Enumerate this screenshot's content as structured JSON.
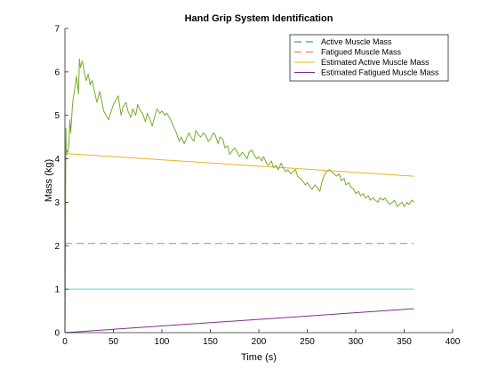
{
  "chart_data": {
    "type": "line",
    "title": "Hand Grip System Identification",
    "xlabel": "Time (s)",
    "ylabel": "Mass (kg)",
    "xlim": [
      0,
      400
    ],
    "ylim": [
      0,
      7
    ],
    "xticks": [
      0,
      50,
      100,
      150,
      200,
      250,
      300,
      350,
      400
    ],
    "yticks": [
      0,
      1,
      2,
      3,
      4,
      5,
      6,
      7
    ],
    "grid": false,
    "legend_position": "top-right",
    "series": [
      {
        "name": "Active Muscle Mass",
        "color": "#1f77b4",
        "line_style": "dashed",
        "x": [
          0,
          0.2,
          0.5
        ],
        "y": [
          0,
          1,
          1
        ]
      },
      {
        "name": "Fatigued Muscle Mass",
        "color": "#d9794f",
        "line_style": "dashed",
        "x": [
          0,
          360
        ],
        "y": [
          2.05,
          2.05
        ]
      },
      {
        "name": "Estimated Active Muscle Mass",
        "color": "#edb120",
        "line_style": "solid",
        "x": [
          0,
          0.3,
          1,
          2,
          360
        ],
        "y": [
          0,
          3.5,
          4.1,
          4.12,
          3.6
        ]
      },
      {
        "name": "Estimated Fatigued Muscle Mass",
        "color": "#7e2f8e",
        "line_style": "solid",
        "x": [
          0,
          360
        ],
        "y": [
          0,
          0.55
        ]
      },
      {
        "name": "",
        "color": "#44dede",
        "line_style": "solid",
        "x": [
          0.5,
          360
        ],
        "y": [
          1,
          1
        ]
      },
      {
        "name": "",
        "color": "#77ac30",
        "line_style": "solid",
        "x": [
          0,
          1,
          1.5,
          2,
          3,
          4,
          5,
          6,
          8,
          10,
          12,
          14,
          15,
          16,
          18,
          20,
          22,
          24,
          26,
          28,
          30,
          33,
          36,
          40,
          45,
          50,
          55,
          58,
          60,
          63,
          65,
          68,
          70,
          73,
          75,
          78,
          80,
          83,
          85,
          88,
          90,
          93,
          95,
          98,
          100,
          103,
          105,
          108,
          110,
          113,
          115,
          118,
          120,
          123,
          125,
          128,
          130,
          133,
          135,
          138,
          140,
          143,
          145,
          148,
          150,
          153,
          155,
          158,
          160,
          163,
          165,
          168,
          170,
          173,
          175,
          178,
          180,
          183,
          185,
          188,
          190,
          193,
          195,
          198,
          200,
          203,
          205,
          208,
          210,
          213,
          215,
          218,
          220,
          223,
          225,
          228,
          230,
          233,
          235,
          238,
          240,
          243,
          245,
          248,
          250,
          253,
          255,
          258,
          260,
          263,
          265,
          268,
          270,
          273,
          275,
          278,
          280,
          283,
          285,
          288,
          290,
          293,
          295,
          298,
          300,
          303,
          305,
          308,
          310,
          313,
          315,
          318,
          320,
          323,
          325,
          328,
          330,
          333,
          335,
          338,
          340,
          343,
          345,
          348,
          350,
          353,
          355,
          358,
          360
        ],
        "y": [
          0,
          4.7,
          4.1,
          4.2,
          4.15,
          4.3,
          4.9,
          4.6,
          5.3,
          5.6,
          5.9,
          5.5,
          6.3,
          6.1,
          6.25,
          6.0,
          5.8,
          5.95,
          5.7,
          5.8,
          5.6,
          5.3,
          5.55,
          5.1,
          4.9,
          5.25,
          5.45,
          5.0,
          5.2,
          5.3,
          5.1,
          4.95,
          5.15,
          5.0,
          5.25,
          5.1,
          5.05,
          4.85,
          5.05,
          4.9,
          4.75,
          5.0,
          5.15,
          5.05,
          5.1,
          5.0,
          5.05,
          4.95,
          4.85,
          4.7,
          4.6,
          4.4,
          4.5,
          4.35,
          4.45,
          4.6,
          4.5,
          4.4,
          4.65,
          4.55,
          4.5,
          4.6,
          4.55,
          4.4,
          4.45,
          4.6,
          4.55,
          4.35,
          4.5,
          4.45,
          4.25,
          4.3,
          4.1,
          4.2,
          4.25,
          4.15,
          4.05,
          4.15,
          4.1,
          4.0,
          4.15,
          4.2,
          4.1,
          4.0,
          4.05,
          3.95,
          4.05,
          3.9,
          3.85,
          3.95,
          3.8,
          3.85,
          3.75,
          3.9,
          3.8,
          3.7,
          3.75,
          3.65,
          3.7,
          3.75,
          3.6,
          3.55,
          3.5,
          3.4,
          3.45,
          3.35,
          3.3,
          3.4,
          3.35,
          3.25,
          3.45,
          3.65,
          3.7,
          3.75,
          3.7,
          3.65,
          3.6,
          3.65,
          3.5,
          3.55,
          3.4,
          3.45,
          3.35,
          3.3,
          3.2,
          3.25,
          3.15,
          3.2,
          3.1,
          3.15,
          3.05,
          3.1,
          3.05,
          3.0,
          3.1,
          3.05,
          3.1,
          3.0,
          2.95,
          3.0,
          3.05,
          2.9,
          2.95,
          3.0,
          2.9,
          3.0,
          2.95,
          3.05,
          3.0
        ]
      }
    ]
  }
}
